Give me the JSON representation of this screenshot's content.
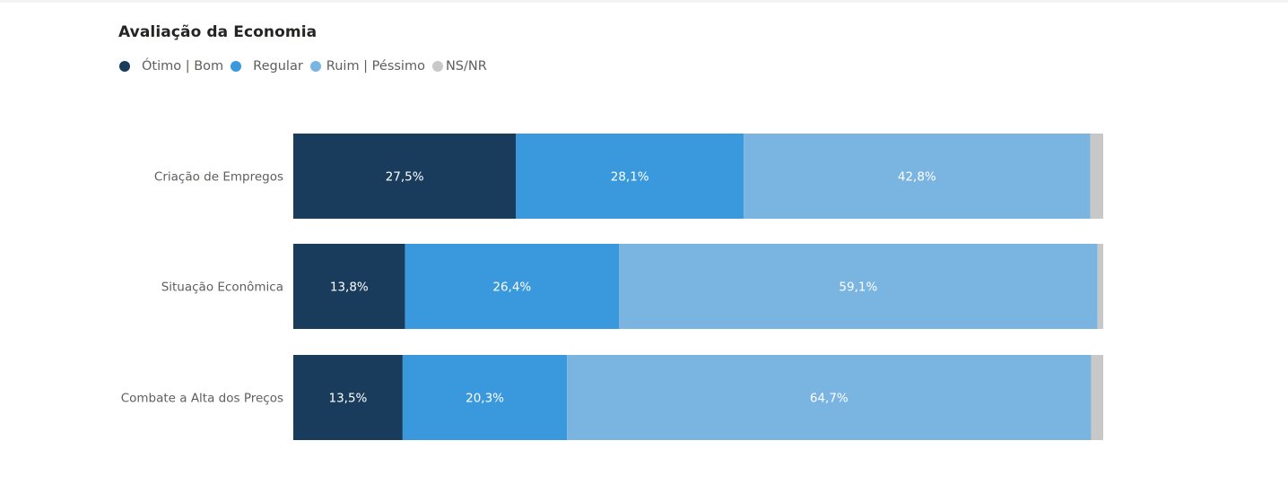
{
  "chart_data": {
    "type": "bar",
    "orientation": "horizontal",
    "stacked": "100%",
    "title": "Avaliação da Economia",
    "legend_position": "top-left",
    "categories": [
      "Criação de Empregos",
      "Situação Econômica",
      "Combate a Alta dos Preços"
    ],
    "series": [
      {
        "name": "Ótimo | Bom",
        "color": "#1a3c5c",
        "values": [
          27.5,
          13.8,
          13.5
        ],
        "labels": [
          "27,5%",
          "13,8%",
          "13,5%"
        ]
      },
      {
        "name": "Regular",
        "color": "#3a99dd",
        "values": [
          28.1,
          26.4,
          20.3
        ],
        "labels": [
          "28,1%",
          "26,4%",
          "20,3%"
        ]
      },
      {
        "name": "Ruim | Péssimo",
        "color": "#7ab5e2",
        "values": [
          42.8,
          59.1,
          64.7
        ],
        "labels": [
          "42,8%",
          "59,1%",
          "64,7%"
        ]
      },
      {
        "name": "NS/NR",
        "color": "#c8c8c8",
        "values": [
          1.6,
          0.7,
          1.5
        ],
        "labels": [
          "",
          "",
          ""
        ]
      }
    ],
    "grid": false
  }
}
